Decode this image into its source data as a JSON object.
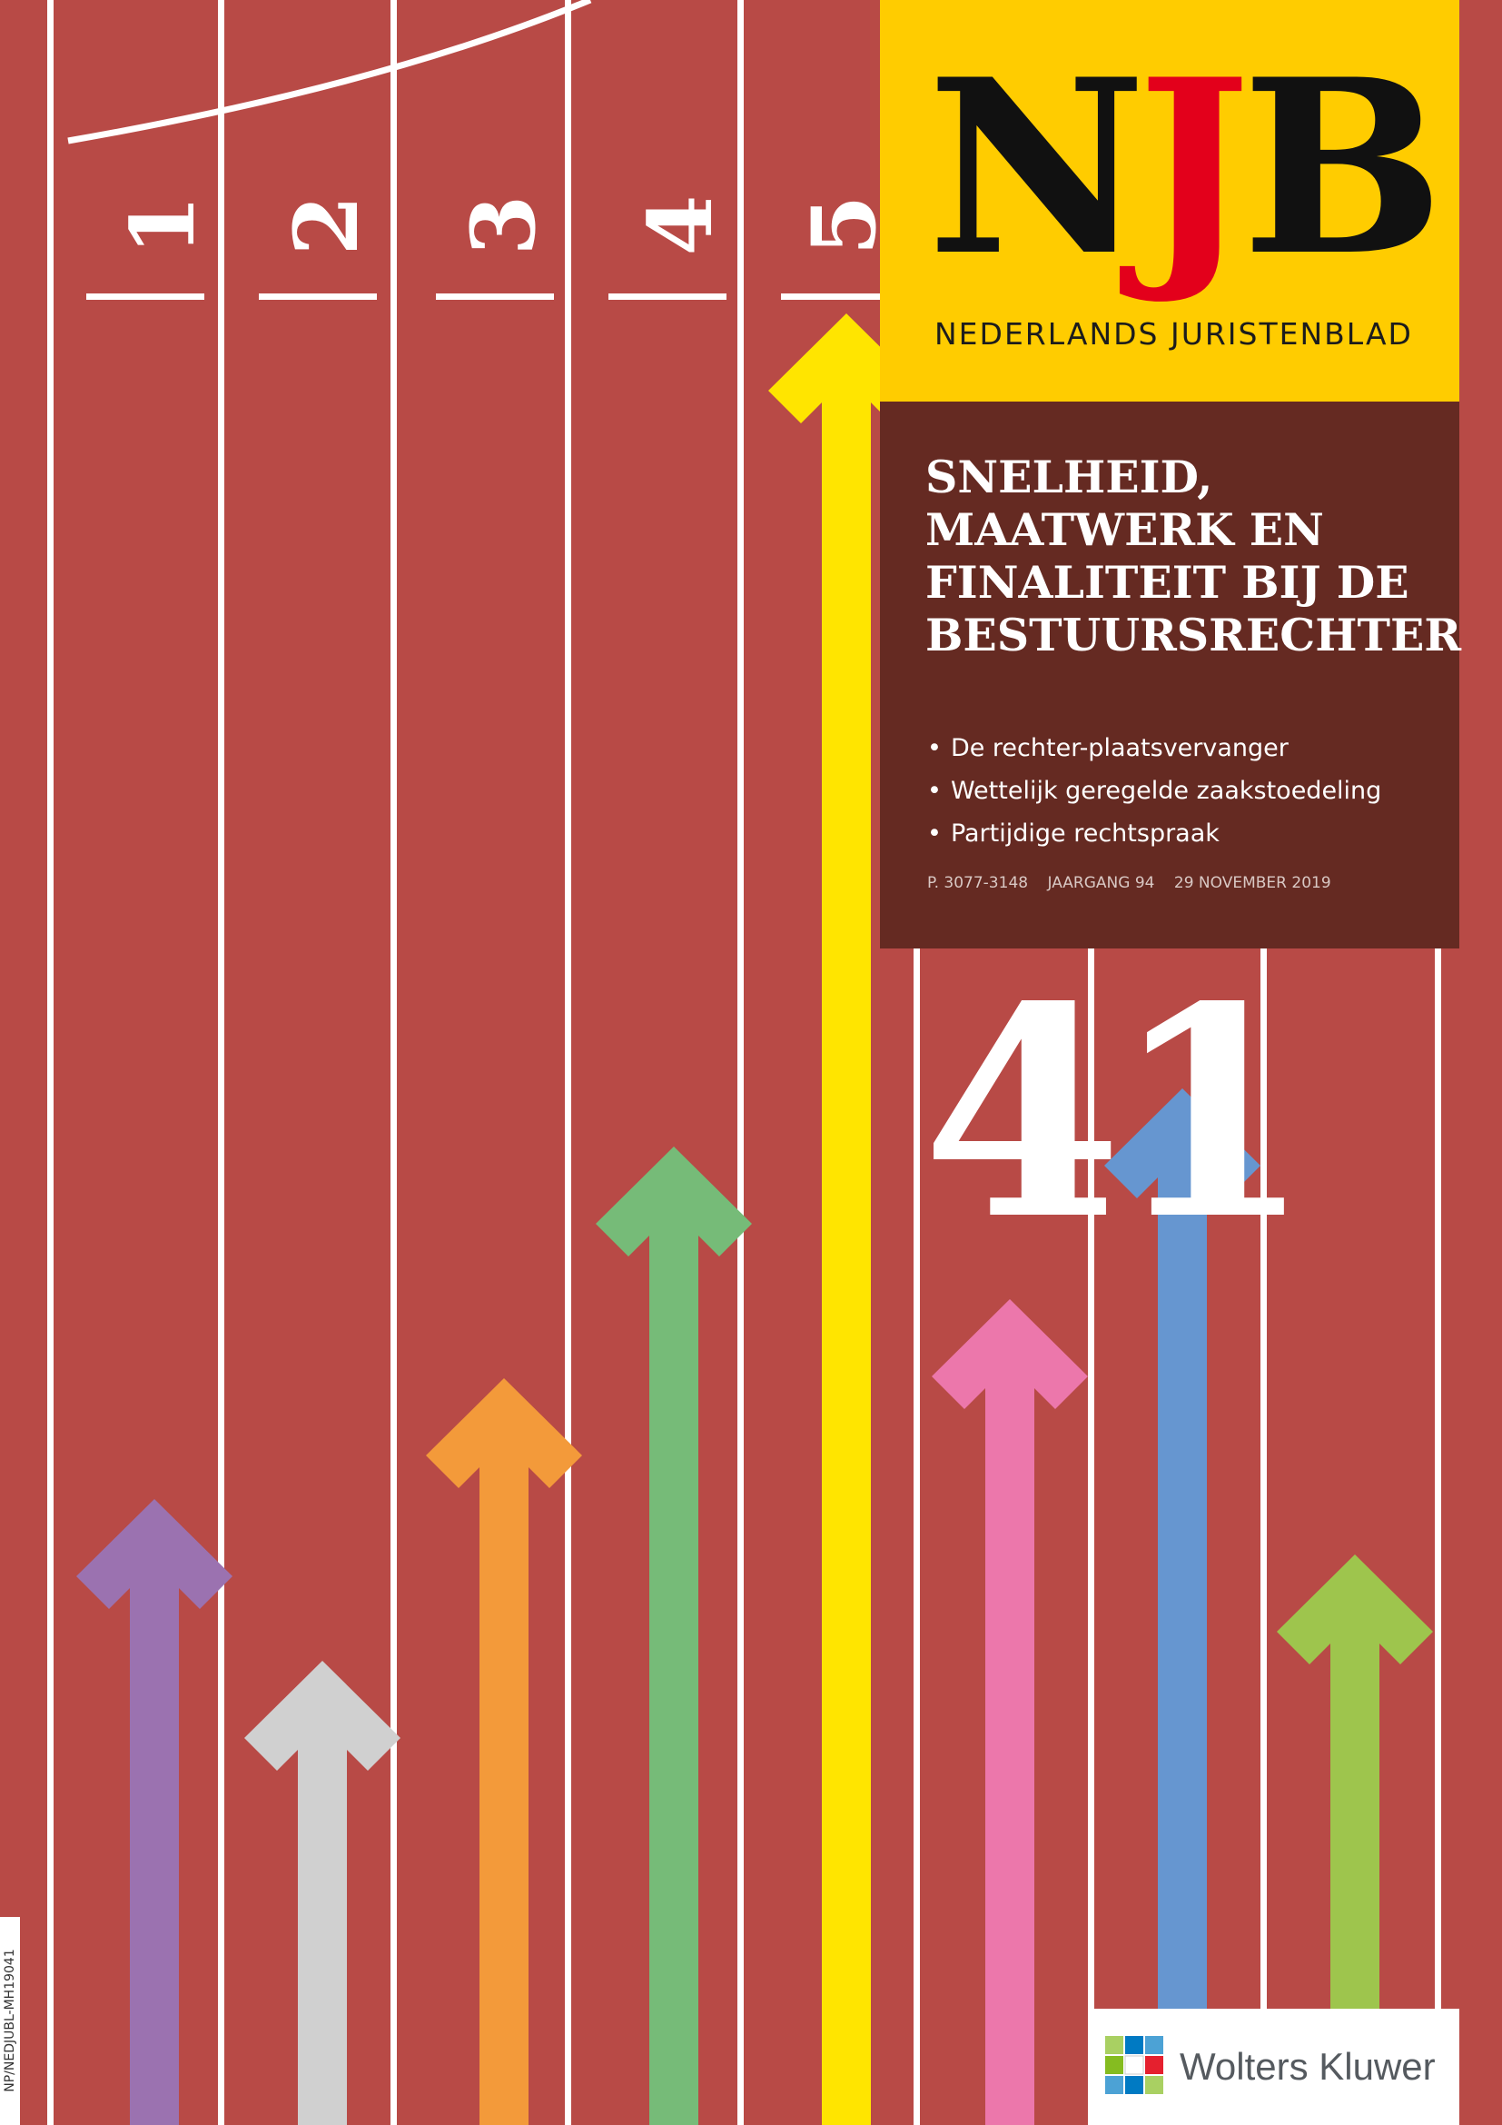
{
  "magazine": {
    "logo_text": "NJB",
    "logo_letters": [
      "N",
      "J",
      "B"
    ],
    "subtitle": "NEDERLANDS JURISTENBLAD",
    "colors": {
      "masthead_bg": "#ffcc00",
      "logo_black": "#111111",
      "logo_red": "#e3001b",
      "track_red": "#b84a46",
      "panel_brown": "#652a22"
    }
  },
  "headline": {
    "lines": [
      "SNELHEID,",
      "MAATWERK EN",
      "FINALITEIT BIJ DE",
      "BESTUURSRECHTER"
    ]
  },
  "topics": [
    "De rechter-plaatsvervanger",
    "Wettelijk geregelde zaakstoedeling",
    "Partijdige rechtspraak"
  ],
  "meta": {
    "pages": "P. 3077-3148",
    "volume": "JAARGANG 94",
    "date": "29 NOVEMBER 2019"
  },
  "issue_number": "41",
  "lane_numbers": [
    "1",
    "2",
    "3",
    "4",
    "5"
  ],
  "arrow_colors": [
    "#9b72b0",
    "#d0d0d0",
    "#f39a3a",
    "#76bb78",
    "#ffe500",
    "#ec77ab",
    "#6696d0",
    "#9ec54d"
  ],
  "publisher": {
    "name": "Wolters Kluwer",
    "icon": "wolters-kluwer-logo-icon"
  },
  "side_code": "NP/NEDJUBL-MH19041"
}
